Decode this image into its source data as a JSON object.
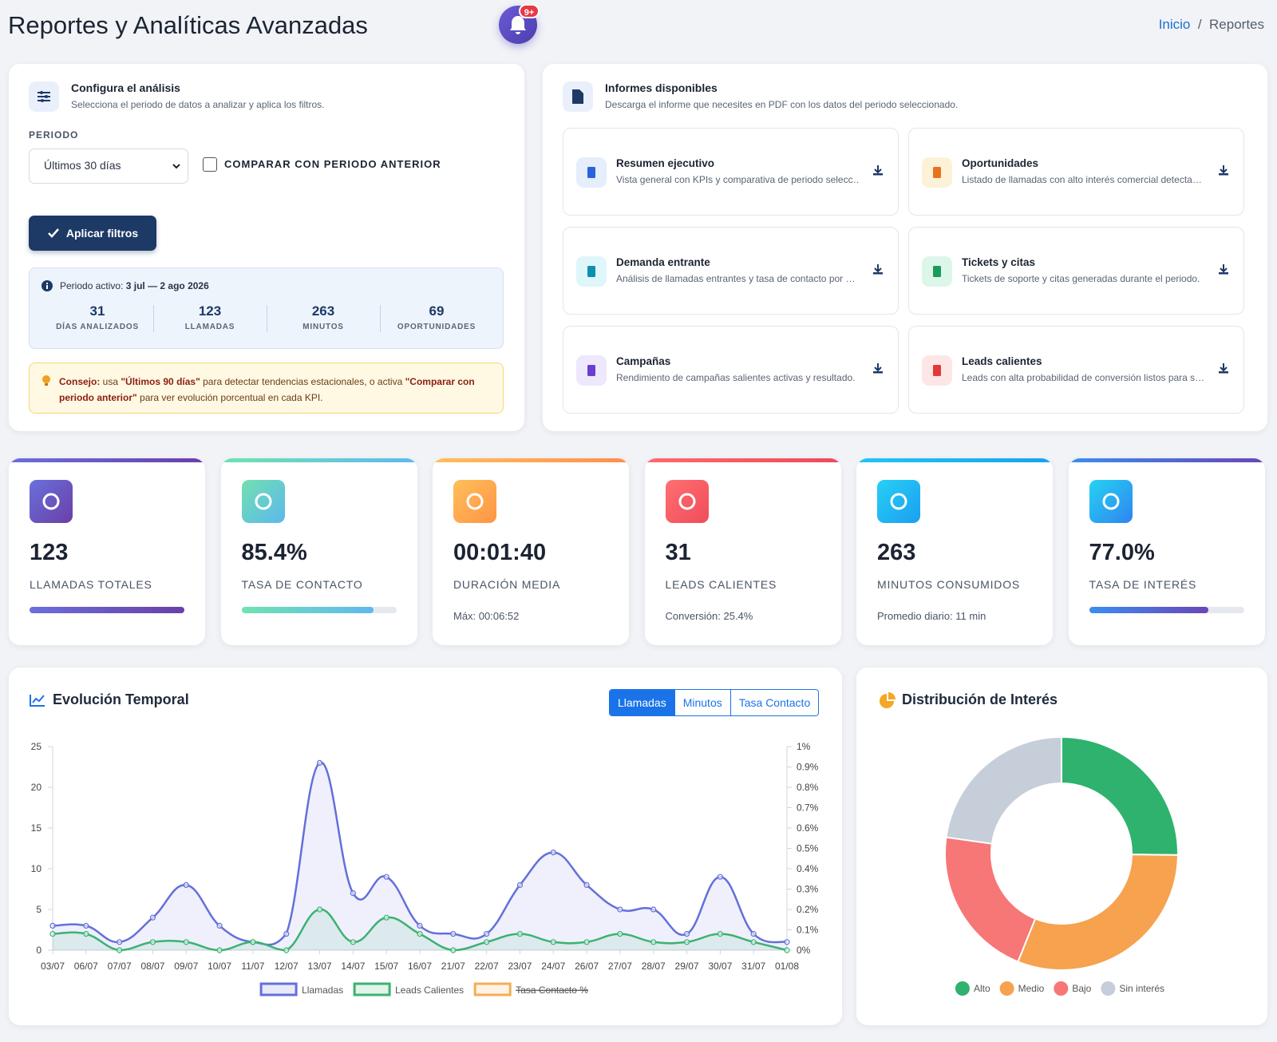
{
  "header": {
    "title": "Reportes y Analíticas Avanzadas",
    "notification_badge": "9+",
    "breadcrumb": [
      "Inicio",
      "Reportes"
    ]
  },
  "config": {
    "title": "Configura el análisis",
    "subtitle": "Selecciona el periodo de datos a analizar y aplica los filtros.",
    "period_label": "PERIODO",
    "period_option": "Últimos 30 días",
    "compare_label": "COMPARAR CON PERIODO ANTERIOR",
    "apply_button": "Aplicar filtros",
    "active_period_label": "Periodo activo:",
    "active_period": "3 jul — 2 ago 2026",
    "stats": [
      {
        "value": 31,
        "label": "DÍAS ANALIZADOS"
      },
      {
        "value": 123,
        "label": "LLAMADAS"
      },
      {
        "value": 263,
        "label": "MINUTOS"
      },
      {
        "value": 69,
        "label": "OPORTUNIDADES"
      }
    ],
    "tip": {
      "prefix": "Consejo:",
      "text1": " usa ",
      "bold1": "\"Últimos 90 días\"",
      "text2": " para detectar tendencias estacionales, o activa ",
      "bold2": "\"Comparar con periodo anterior\"",
      "text3": " para ver evolución porcentual en cada KPI."
    }
  },
  "reports": {
    "title": "Informes disponibles",
    "subtitle": "Descarga el informe que necesites en PDF con los datos del periodo seleccionado.",
    "items": [
      {
        "title": "Resumen ejecutivo",
        "description": "Vista general con KPIs y comparativa de periodo selecc…"
      },
      {
        "title": "Oportunidades",
        "description": "Listado de llamadas con alto interés comercial detecta…"
      },
      {
        "title": "Demanda entrante",
        "description": "Análisis de llamadas entrantes y tasa de contacto por …"
      },
      {
        "title": "Tickets y citas",
        "description": "Tickets de soporte y citas generadas durante el periodo."
      },
      {
        "title": "Campañas",
        "description": "Rendimiento de campañas salientes activas y resultado."
      },
      {
        "title": "Leads calientes",
        "description": "Leads con alta probabilidad de conversión listos para s…"
      }
    ]
  },
  "kpis": [
    {
      "value": "123",
      "label": "LLAMADAS TOTALES"
    },
    {
      "value": "85.4%",
      "label": "TASA DE CONTACTO"
    },
    {
      "value": "00:01:40",
      "label": "DURACIÓN MEDIA",
      "note": "Máx: 00:06:52"
    },
    {
      "value": "31",
      "label": "LEADS CALIENTES",
      "note": "Conversión: 25.4%"
    },
    {
      "value": "263",
      "label": "MINUTOS CONSUMIDOS",
      "note": "Promedio diario: 11 min"
    },
    {
      "value": "77.0%",
      "label": "TASA DE INTERÉS"
    }
  ],
  "chart_data": [
    {
      "type": "line",
      "title": "Evolución Temporal",
      "tabs": [
        "Llamadas",
        "Minutos",
        "Tasa Contacto"
      ],
      "categories": [
        "03/07",
        "06/07",
        "07/07",
        "08/07",
        "09/07",
        "10/07",
        "11/07",
        "12/07",
        "13/07",
        "14/07",
        "15/07",
        "16/07",
        "21/07",
        "22/07",
        "23/07",
        "24/07",
        "26/07",
        "27/07",
        "28/07",
        "29/07",
        "30/07",
        "31/07",
        "01/08"
      ],
      "series": [
        {
          "name": "Llamadas",
          "color": "#6370d9",
          "values": [
            3,
            3,
            1,
            4,
            8,
            3,
            1,
            2,
            23,
            7,
            9,
            3,
            2,
            2,
            8,
            12,
            8,
            5,
            5,
            2,
            9,
            2,
            1
          ]
        },
        {
          "name": "Leads Calientes",
          "color": "#3bb273",
          "values": [
            2,
            2,
            0,
            1,
            1,
            0,
            1,
            0,
            5,
            1,
            4,
            2,
            0,
            1,
            2,
            1,
            1,
            2,
            1,
            1,
            2,
            1,
            0
          ]
        },
        {
          "name": "Tasa Contacto %",
          "color": "#f6ad55",
          "axis": "y2",
          "hidden": true,
          "values": [
            null,
            null,
            null,
            null,
            null,
            null,
            null,
            null,
            null,
            null,
            null,
            null,
            null,
            null,
            null,
            null,
            null,
            null,
            null,
            null,
            null,
            null,
            null
          ]
        }
      ],
      "ylim": [
        0,
        25
      ],
      "yticks": [
        0,
        5,
        10,
        15,
        20,
        25
      ],
      "y2lim": [
        0,
        1
      ],
      "y2ticks": [
        {
          "value": 0,
          "label": "0%"
        },
        {
          "value": 0.1,
          "label": "0.1%"
        },
        {
          "value": 0.2,
          "label": "0.2%"
        },
        {
          "value": 0.3,
          "label": "0.3%"
        },
        {
          "value": 0.4,
          "label": "0.4%"
        },
        {
          "value": 0.5,
          "label": "0.5%"
        },
        {
          "value": 0.6,
          "label": "0.6%"
        },
        {
          "value": 0.7,
          "label": "0.7%"
        },
        {
          "value": 0.8,
          "label": "0.8%"
        },
        {
          "value": 0.9,
          "label": "0.9%"
        },
        {
          "value": 1,
          "label": "1%"
        }
      ],
      "grid": false
    },
    {
      "type": "pie",
      "title": "Distribución de Interés",
      "donut": true,
      "categories": [
        "Alto",
        "Medio",
        "Bajo",
        "Sin interés"
      ],
      "values": [
        31,
        38,
        26,
        28
      ],
      "colors": [
        "#2fb26d",
        "#f6a24f",
        "#f77676",
        "#c5ced9"
      ]
    }
  ]
}
